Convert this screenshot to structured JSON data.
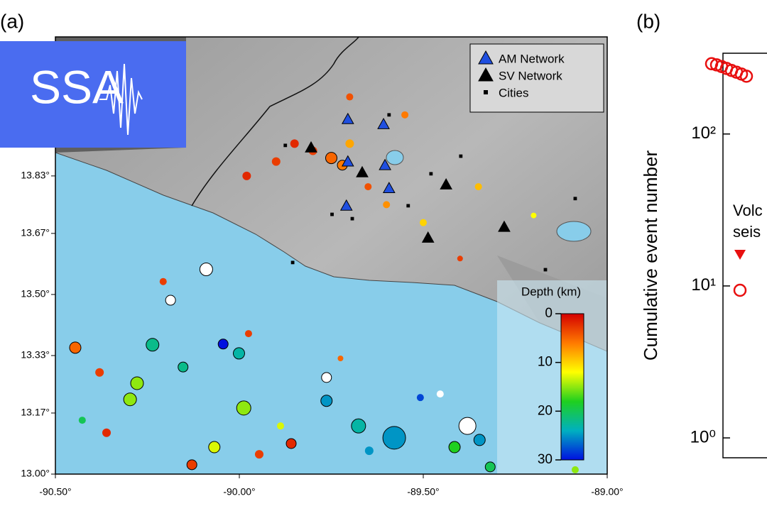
{
  "logo": {
    "text": "SSA"
  },
  "chart_data": [
    {
      "type": "map",
      "panel_label": "(a)",
      "xlim": [
        -90.5,
        -89.0
      ],
      "ylim": [
        13.0,
        14.217
      ],
      "xticks": [
        {
          "value": -90.5,
          "label": "-90.50°"
        },
        {
          "value": -90.0,
          "label": "-90.00°"
        },
        {
          "value": -89.5,
          "label": "-89.50°"
        },
        {
          "value": -89.0,
          "label": "-89.00°"
        }
      ],
      "yticks": [
        {
          "value": 13.0,
          "label": "13.00°"
        },
        {
          "value": 13.17,
          "label": "13.17°"
        },
        {
          "value": 13.33,
          "label": "13.33°"
        },
        {
          "value": 13.5,
          "label": "13.50°"
        },
        {
          "value": 13.67,
          "label": "13.67°"
        },
        {
          "value": 13.83,
          "label": "13.83°"
        }
      ],
      "legend": "upper right",
      "events": {
        "x": [
          -89.8,
          -89.75,
          -89.72,
          -89.85,
          -89.9,
          -89.7,
          -89.65,
          -89.6,
          -89.5,
          -89.35,
          -89.7,
          -89.55,
          -89.98,
          -89.4,
          -89.2,
          -90.09,
          -90.187,
          -90.278,
          -90.236,
          -90.297,
          -89.988,
          -89.579,
          -89.38,
          -89.676,
          -89.763,
          -89.763,
          -89.859,
          -90.068,
          -90.129,
          -90.446,
          -90.38,
          -90.361,
          -90.153,
          -90.044,
          -90.001,
          -89.415,
          -89.318,
          -89.347,
          -89.647,
          -90.207,
          -89.508,
          -89.975,
          -90.427,
          -89.946,
          -89.888,
          -89.725,
          -89.454,
          -89.087
        ],
        "y": [
          13.9,
          13.88,
          13.86,
          13.92,
          13.87,
          13.92,
          13.8,
          13.75,
          13.7,
          13.8,
          14.05,
          14.0,
          13.83,
          13.6,
          13.72,
          13.57,
          13.484,
          13.253,
          13.36,
          13.208,
          13.184,
          13.101,
          13.134,
          13.134,
          13.204,
          13.269,
          13.085,
          13.075,
          13.026,
          13.352,
          13.283,
          13.115,
          13.298,
          13.362,
          13.336,
          13.075,
          13.02,
          13.095,
          13.065,
          13.536,
          13.213,
          13.391,
          13.15,
          13.055,
          13.134,
          13.322,
          13.223,
          13.012
        ],
        "depth": [
          3,
          5,
          6,
          2,
          3,
          8,
          4,
          7,
          10,
          9,
          4,
          6,
          2,
          3,
          12,
          null,
          null,
          15,
          22,
          15,
          15,
          25,
          null,
          23,
          25,
          null,
          2,
          13,
          3,
          5,
          3,
          2,
          22,
          30,
          23,
          18,
          20,
          25,
          25,
          3,
          28,
          3,
          20,
          3,
          13,
          5,
          null,
          15
        ],
        "size": [
          6,
          8,
          7,
          6,
          6,
          6,
          5,
          5,
          5,
          5,
          5,
          5,
          6,
          4,
          4,
          9,
          7,
          9,
          9,
          9,
          10,
          16,
          12,
          10,
          8,
          7,
          7,
          8,
          7,
          8,
          6,
          6,
          7,
          7,
          8,
          8,
          7,
          8,
          6,
          5,
          5,
          5,
          5,
          6,
          5,
          4,
          5,
          5
        ]
      },
      "series": [
        {
          "name": "AM Network",
          "color": "#1f4fe0",
          "marker": "triangle",
          "x": [
            -89.705,
            -89.608,
            -89.705,
            -89.604,
            -89.593,
            -89.709
          ],
          "values": [
            13.988,
            13.974,
            13.87,
            13.86,
            13.796,
            13.747
          ]
        },
        {
          "name": "SV Network",
          "color": "#000000",
          "marker": "triangle",
          "x": [
            -89.805,
            -89.438,
            -89.487,
            -89.28,
            -89.666
          ],
          "values": [
            13.909,
            13.806,
            13.658,
            13.688,
            13.84
          ]
        },
        {
          "name": "Cities",
          "color": "#000000",
          "marker": "square",
          "x": [
            -89.593,
            -89.875,
            -89.748,
            -89.541,
            -89.479,
            -89.398,
            -89.087,
            -89.168,
            -89.855,
            -89.693
          ],
          "values": [
            14.0,
            13.915,
            13.723,
            13.747,
            13.836,
            13.885,
            13.767,
            13.569,
            13.589,
            13.711
          ]
        }
      ],
      "colorbar": {
        "title": "Depth (km)",
        "lim": [
          0,
          30
        ],
        "ticks": [
          0,
          10,
          20,
          30
        ],
        "colors": [
          "#d40000",
          "#ff7a00",
          "#ffff00",
          "#1fd01f",
          "#00b0c0",
          "#0010e0"
        ]
      }
    },
    {
      "type": "scatter",
      "panel_label": "(b)",
      "log_y": true,
      "ylabel": "Cumulative event number",
      "ylim": [
        0.74,
        340
      ],
      "yticks": [
        {
          "value": 1,
          "label": "10⁰"
        },
        {
          "value": 10,
          "label": "10¹"
        },
        {
          "value": 100,
          "label": "10²"
        }
      ],
      "legend_title": [
        "Volc",
        "seis"
      ],
      "categories": [
        null,
        null,
        null,
        null,
        null,
        null,
        null,
        null
      ],
      "series": [
        {
          "color": "#e81010",
          "marker": "circle-open",
          "values": [
            290,
            285,
            278,
            270,
            262,
            255,
            248,
            240
          ]
        }
      ]
    }
  ]
}
